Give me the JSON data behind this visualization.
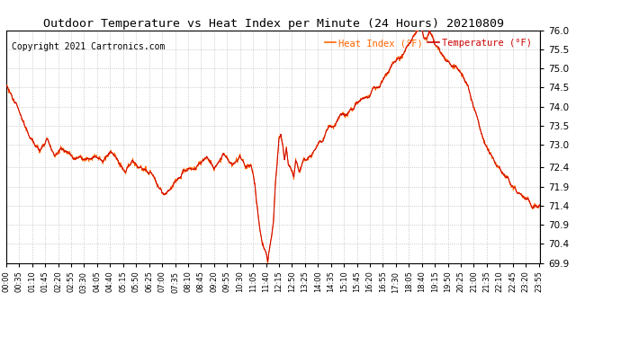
{
  "title": "Outdoor Temperature vs Heat Index per Minute (24 Hours) 20210809",
  "copyright": "Copyright 2021 Cartronics.com",
  "legend_heat": "Heat Index (°F)",
  "legend_temp": "Temperature (°F)",
  "ylim": [
    69.9,
    76.0
  ],
  "yticks": [
    69.9,
    70.4,
    70.9,
    71.4,
    71.9,
    72.4,
    73.0,
    73.5,
    74.0,
    74.5,
    75.0,
    75.5,
    76.0
  ],
  "xtick_labels": [
    "00:00",
    "00:35",
    "01:10",
    "01:45",
    "02:20",
    "02:55",
    "03:30",
    "04:05",
    "04:40",
    "05:15",
    "05:50",
    "06:25",
    "07:00",
    "07:35",
    "08:10",
    "08:45",
    "09:20",
    "09:55",
    "10:30",
    "11:05",
    "11:40",
    "12:15",
    "12:50",
    "13:25",
    "14:00",
    "14:35",
    "15:10",
    "15:45",
    "16:20",
    "16:55",
    "17:30",
    "18:05",
    "18:40",
    "19:15",
    "19:50",
    "20:25",
    "21:00",
    "21:35",
    "22:10",
    "22:45",
    "23:20",
    "23:55"
  ],
  "bg_color": "#ffffff",
  "plot_bg_color": "#ffffff",
  "grid_color": "#bbbbbb",
  "line_color": "#cc0000",
  "title_color": "#000000",
  "copyright_color": "#000000",
  "legend_heat_color": "#ff6600",
  "legend_temp_color": "#cc0000"
}
